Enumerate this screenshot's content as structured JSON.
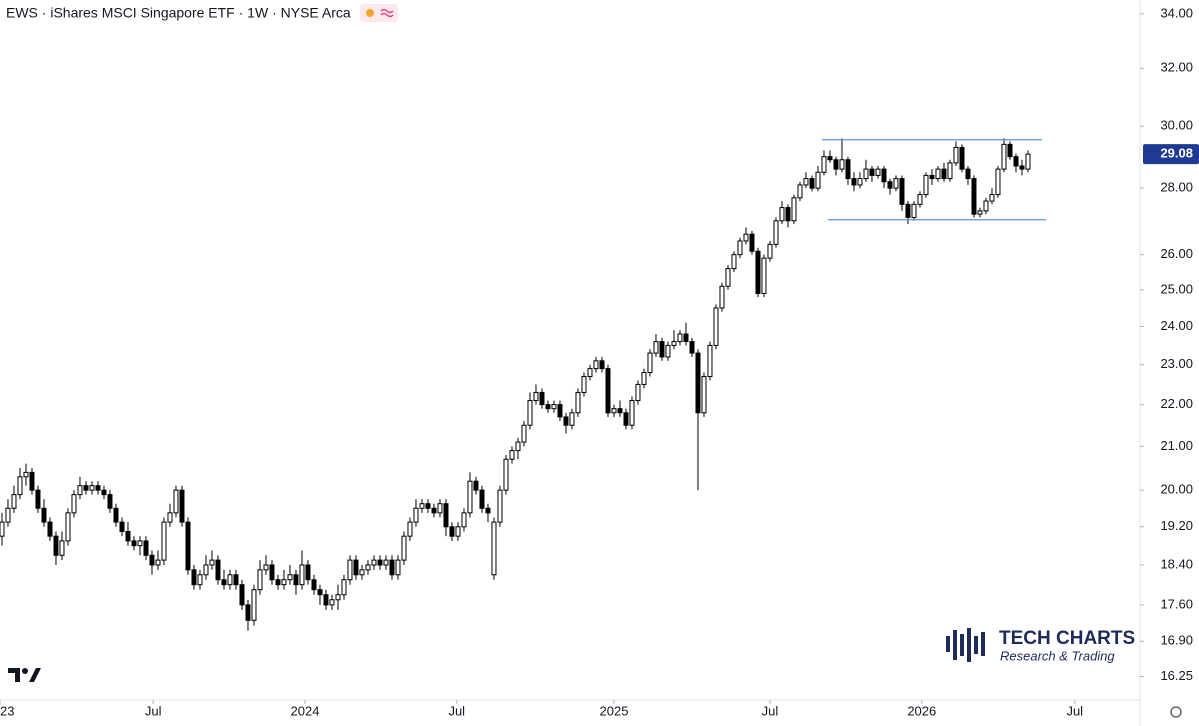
{
  "chart_data": {
    "type": "candlestick",
    "title": "EWS · iShares MSCI Singapore ETF · 1W · NYSE Arca",
    "log_scale": true,
    "up_color": "#ffffff",
    "down_color": "#000000",
    "line_color": "#000000",
    "channel_color": "#5b8ff0",
    "channel": [
      29.55,
      27.03
    ],
    "last_price_color": "#1f3a93",
    "ylim": [
      15.83,
      34.53
    ],
    "yticks": [
      {
        "value": 16.25,
        "label": "16.25"
      },
      {
        "value": 16.9,
        "label": "16.90"
      },
      {
        "value": 17.6,
        "label": "17.60"
      },
      {
        "value": 18.4,
        "label": "18.40"
      },
      {
        "value": 19.2,
        "label": "19.20"
      },
      {
        "value": 20,
        "label": "20.00"
      },
      {
        "value": 21,
        "label": "21.00"
      },
      {
        "value": 22,
        "label": "22.00"
      },
      {
        "value": 23,
        "label": "23.00"
      },
      {
        "value": 24,
        "label": "24.00"
      },
      {
        "value": 25,
        "label": "25.00"
      },
      {
        "value": 26,
        "label": "26.00"
      },
      {
        "value": 28,
        "label": "28.00"
      },
      {
        "value": 30,
        "label": "30.00"
      },
      {
        "value": 32,
        "label": "32.00"
      },
      {
        "value": 34,
        "label": "34.00"
      }
    ],
    "xlim": [
      -0.33,
      189.67
    ],
    "xticks": [
      {
        "value": -0.33,
        "label": "2023"
      },
      {
        "value": 25.2,
        "label": "Jul"
      },
      {
        "value": 50.5,
        "label": "2024"
      },
      {
        "value": 75.8,
        "label": "Jul"
      },
      {
        "value": 102,
        "label": "2025"
      },
      {
        "value": 128,
        "label": "Jul"
      },
      {
        "value": 153.3,
        "label": "2026"
      },
      {
        "value": 178.8,
        "label": "Jul"
      }
    ],
    "ohlc": [
      [
        19.0,
        19.5,
        18.8,
        19.3
      ],
      [
        19.3,
        19.8,
        19.2,
        19.6
      ],
      [
        19.6,
        20.1,
        19.5,
        19.9
      ],
      [
        19.9,
        20.5,
        19.8,
        20.3
      ],
      [
        20.3,
        20.6,
        20.1,
        20.4
      ],
      [
        20.4,
        20.5,
        19.9,
        20.0
      ],
      [
        20.0,
        20.1,
        19.5,
        19.6
      ],
      [
        19.6,
        19.8,
        19.2,
        19.3
      ],
      [
        19.3,
        19.4,
        18.9,
        19.0
      ],
      [
        19.0,
        19.1,
        18.4,
        18.6
      ],
      [
        18.6,
        19.1,
        18.5,
        18.9
      ],
      [
        18.9,
        19.6,
        18.8,
        19.5
      ],
      [
        19.5,
        20.0,
        19.4,
        19.9
      ],
      [
        19.9,
        20.3,
        19.8,
        20.1
      ],
      [
        20.1,
        20.2,
        19.9,
        20.0
      ],
      [
        20.0,
        20.2,
        19.9,
        20.1
      ],
      [
        20.1,
        20.2,
        19.9,
        20.0
      ],
      [
        20.0,
        20.1,
        19.8,
        19.9
      ],
      [
        19.9,
        20.0,
        19.5,
        19.6
      ],
      [
        19.6,
        19.7,
        19.2,
        19.3
      ],
      [
        19.3,
        19.4,
        19.0,
        19.1
      ],
      [
        19.1,
        19.3,
        18.8,
        18.9
      ],
      [
        18.9,
        19.0,
        18.7,
        18.8
      ],
      [
        18.8,
        19.0,
        18.6,
        18.9
      ],
      [
        18.9,
        19.0,
        18.5,
        18.6
      ],
      [
        18.6,
        18.7,
        18.2,
        18.4
      ],
      [
        18.4,
        18.7,
        18.3,
        18.5
      ],
      [
        18.5,
        19.4,
        18.4,
        19.3
      ],
      [
        19.3,
        19.7,
        19.2,
        19.5
      ],
      [
        19.5,
        20.1,
        19.4,
        20.0
      ],
      [
        20.0,
        20.1,
        19.2,
        19.3
      ],
      [
        19.3,
        19.4,
        18.2,
        18.3
      ],
      [
        18.3,
        18.4,
        17.9,
        18.0
      ],
      [
        18.0,
        18.3,
        17.9,
        18.2
      ],
      [
        18.2,
        18.6,
        18.1,
        18.4
      ],
      [
        18.4,
        18.7,
        18.3,
        18.5
      ],
      [
        18.5,
        18.6,
        18.0,
        18.1
      ],
      [
        18.1,
        18.3,
        17.9,
        18.0
      ],
      [
        18.0,
        18.3,
        17.9,
        18.2
      ],
      [
        18.2,
        18.3,
        17.9,
        18.0
      ],
      [
        18.0,
        18.1,
        17.5,
        17.6
      ],
      [
        17.6,
        17.7,
        17.1,
        17.3
      ],
      [
        17.3,
        18.0,
        17.2,
        17.9
      ],
      [
        17.9,
        18.5,
        17.8,
        18.3
      ],
      [
        18.3,
        18.6,
        18.2,
        18.4
      ],
      [
        18.4,
        18.5,
        18.0,
        18.1
      ],
      [
        18.1,
        18.2,
        17.9,
        18.0
      ],
      [
        18.0,
        18.3,
        17.9,
        18.1
      ],
      [
        18.1,
        18.4,
        18.0,
        18.2
      ],
      [
        18.2,
        18.3,
        17.8,
        18.0
      ],
      [
        18.0,
        18.7,
        17.9,
        18.4
      ],
      [
        18.4,
        18.5,
        18.0,
        18.1
      ],
      [
        18.1,
        18.2,
        17.8,
        17.9
      ],
      [
        17.9,
        18.0,
        17.6,
        17.8
      ],
      [
        17.8,
        17.9,
        17.5,
        17.6
      ],
      [
        17.6,
        17.8,
        17.5,
        17.7
      ],
      [
        17.7,
        18.0,
        17.5,
        17.8
      ],
      [
        17.8,
        18.2,
        17.7,
        18.1
      ],
      [
        18.1,
        18.6,
        18.0,
        18.5
      ],
      [
        18.5,
        18.6,
        18.1,
        18.2
      ],
      [
        18.2,
        18.4,
        18.1,
        18.3
      ],
      [
        18.3,
        18.5,
        18.2,
        18.4
      ],
      [
        18.4,
        18.6,
        18.3,
        18.5
      ],
      [
        18.5,
        18.6,
        18.3,
        18.4
      ],
      [
        18.4,
        18.6,
        18.3,
        18.5
      ],
      [
        18.5,
        18.6,
        18.1,
        18.2
      ],
      [
        18.2,
        18.6,
        18.1,
        18.5
      ],
      [
        18.5,
        19.1,
        18.4,
        19.0
      ],
      [
        19.0,
        19.4,
        18.9,
        19.3
      ],
      [
        19.3,
        19.8,
        19.2,
        19.6
      ],
      [
        19.6,
        19.8,
        19.5,
        19.7
      ],
      [
        19.7,
        19.8,
        19.5,
        19.6
      ],
      [
        19.6,
        19.7,
        19.4,
        19.5
      ],
      [
        19.5,
        19.8,
        19.4,
        19.7
      ],
      [
        19.7,
        19.8,
        19.0,
        19.2
      ],
      [
        19.2,
        19.3,
        18.9,
        19.0
      ],
      [
        19.0,
        19.3,
        18.9,
        19.2
      ],
      [
        19.2,
        19.6,
        19.1,
        19.5
      ],
      [
        19.5,
        20.4,
        19.4,
        20.2
      ],
      [
        20.2,
        20.3,
        19.9,
        20.0
      ],
      [
        20.0,
        20.1,
        19.5,
        19.6
      ],
      [
        19.6,
        19.7,
        19.3,
        19.5
      ],
      [
        18.2,
        19.4,
        18.1,
        19.3
      ],
      [
        19.3,
        20.1,
        19.2,
        20.0
      ],
      [
        20.0,
        20.8,
        19.9,
        20.7
      ],
      [
        20.7,
        21.0,
        20.6,
        20.9
      ],
      [
        20.9,
        21.2,
        20.7,
        21.1
      ],
      [
        21.1,
        21.6,
        21.0,
        21.5
      ],
      [
        21.5,
        22.3,
        21.4,
        22.1
      ],
      [
        22.1,
        22.5,
        22.0,
        22.3
      ],
      [
        22.3,
        22.4,
        21.9,
        22.0
      ],
      [
        22.0,
        22.1,
        21.8,
        21.9
      ],
      [
        21.9,
        22.1,
        21.8,
        22.0
      ],
      [
        22.0,
        22.1,
        21.6,
        21.7
      ],
      [
        21.7,
        21.8,
        21.3,
        21.5
      ],
      [
        21.5,
        21.9,
        21.4,
        21.8
      ],
      [
        21.8,
        22.4,
        21.7,
        22.3
      ],
      [
        22.3,
        22.8,
        22.2,
        22.7
      ],
      [
        22.7,
        23.0,
        22.6,
        22.9
      ],
      [
        22.9,
        23.2,
        22.8,
        23.1
      ],
      [
        23.1,
        23.2,
        22.8,
        22.9
      ],
      [
        22.9,
        23.0,
        21.7,
        21.8
      ],
      [
        21.8,
        22.0,
        21.7,
        21.9
      ],
      [
        21.9,
        22.1,
        21.7,
        21.8
      ],
      [
        21.8,
        21.9,
        21.4,
        21.5
      ],
      [
        21.5,
        22.2,
        21.4,
        22.1
      ],
      [
        22.1,
        22.6,
        22.0,
        22.5
      ],
      [
        22.5,
        22.9,
        22.4,
        22.8
      ],
      [
        22.8,
        23.4,
        22.7,
        23.3
      ],
      [
        23.3,
        23.8,
        23.2,
        23.6
      ],
      [
        23.6,
        23.7,
        23.1,
        23.2
      ],
      [
        23.2,
        23.6,
        23.1,
        23.5
      ],
      [
        23.5,
        23.9,
        23.4,
        23.6
      ],
      [
        23.6,
        23.9,
        23.5,
        23.8
      ],
      [
        23.8,
        24.1,
        23.5,
        23.6
      ],
      [
        23.6,
        23.7,
        23.2,
        23.3
      ],
      [
        23.3,
        23.4,
        20.0,
        21.8
      ],
      [
        21.8,
        22.8,
        21.7,
        22.7
      ],
      [
        22.7,
        23.6,
        22.6,
        23.5
      ],
      [
        23.5,
        24.6,
        23.4,
        24.5
      ],
      [
        24.5,
        25.2,
        24.4,
        25.1
      ],
      [
        25.1,
        25.7,
        25.0,
        25.6
      ],
      [
        25.6,
        26.1,
        25.5,
        26.0
      ],
      [
        26.0,
        26.5,
        25.9,
        26.4
      ],
      [
        26.4,
        26.8,
        26.3,
        26.6
      ],
      [
        26.6,
        26.7,
        26.0,
        26.1
      ],
      [
        26.1,
        26.2,
        24.8,
        24.9
      ],
      [
        24.9,
        26.0,
        24.8,
        25.9
      ],
      [
        25.9,
        26.4,
        25.8,
        26.3
      ],
      [
        26.3,
        27.1,
        26.2,
        27.0
      ],
      [
        27.0,
        27.6,
        26.9,
        27.4
      ],
      [
        27.4,
        27.5,
        26.8,
        27.0
      ],
      [
        27.0,
        27.8,
        26.9,
        27.7
      ],
      [
        27.7,
        28.2,
        27.6,
        28.1
      ],
      [
        28.1,
        28.5,
        28.0,
        28.3
      ],
      [
        28.3,
        28.4,
        27.9,
        28.0
      ],
      [
        28.0,
        28.7,
        27.9,
        28.5
      ],
      [
        28.5,
        29.2,
        28.4,
        29.0
      ],
      [
        29.0,
        29.2,
        28.8,
        28.9
      ],
      [
        28.9,
        29.0,
        28.4,
        28.6
      ],
      [
        28.6,
        29.6,
        28.5,
        28.9
      ],
      [
        28.9,
        29.0,
        28.1,
        28.3
      ],
      [
        28.3,
        28.5,
        27.9,
        28.1
      ],
      [
        28.1,
        28.5,
        28.0,
        28.3
      ],
      [
        28.3,
        28.9,
        28.2,
        28.6
      ],
      [
        28.6,
        28.7,
        28.2,
        28.4
      ],
      [
        28.4,
        28.7,
        28.3,
        28.6
      ],
      [
        28.6,
        28.7,
        28.0,
        28.2
      ],
      [
        28.2,
        28.3,
        27.8,
        28.0
      ],
      [
        28.0,
        28.4,
        27.9,
        28.3
      ],
      [
        28.3,
        28.4,
        27.3,
        27.5
      ],
      [
        27.5,
        27.6,
        26.9,
        27.1
      ],
      [
        27.1,
        27.6,
        27.0,
        27.5
      ],
      [
        27.5,
        27.9,
        27.4,
        27.8
      ],
      [
        27.8,
        28.5,
        27.7,
        28.4
      ],
      [
        28.4,
        28.6,
        28.1,
        28.3
      ],
      [
        28.3,
        28.7,
        28.2,
        28.6
      ],
      [
        28.6,
        28.8,
        28.2,
        28.3
      ],
      [
        28.3,
        28.9,
        28.2,
        28.8
      ],
      [
        28.8,
        29.5,
        28.7,
        29.3
      ],
      [
        29.3,
        29.4,
        28.5,
        28.6
      ],
      [
        28.6,
        28.7,
        28.1,
        28.3
      ],
      [
        28.3,
        28.4,
        27.1,
        27.2
      ],
      [
        27.2,
        27.4,
        27.1,
        27.3
      ],
      [
        27.3,
        27.7,
        27.2,
        27.6
      ],
      [
        27.6,
        28.0,
        27.5,
        27.8
      ],
      [
        27.8,
        28.7,
        27.7,
        28.6
      ],
      [
        28.6,
        29.6,
        28.5,
        29.4
      ],
      [
        29.4,
        29.5,
        28.9,
        29.0
      ],
      [
        29.0,
        29.1,
        28.5,
        28.7
      ],
      [
        28.7,
        28.9,
        28.4,
        28.6
      ],
      [
        28.6,
        29.2,
        28.5,
        29.08
      ]
    ],
    "logo": {
      "name": "TECH CHARTS",
      "tagline": "Research & Trading"
    }
  }
}
